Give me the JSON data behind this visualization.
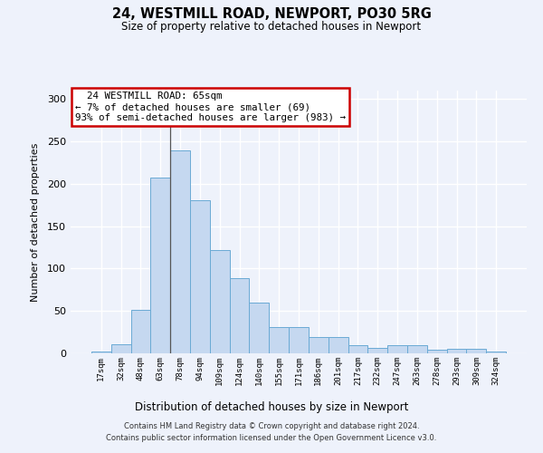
{
  "title": "24, WESTMILL ROAD, NEWPORT, PO30 5RG",
  "subtitle": "Size of property relative to detached houses in Newport",
  "xlabel": "Distribution of detached houses by size in Newport",
  "ylabel": "Number of detached properties",
  "categories": [
    "17sqm",
    "32sqm",
    "48sqm",
    "63sqm",
    "78sqm",
    "94sqm",
    "109sqm",
    "124sqm",
    "140sqm",
    "155sqm",
    "171sqm",
    "186sqm",
    "201sqm",
    "217sqm",
    "232sqm",
    "247sqm",
    "263sqm",
    "278sqm",
    "293sqm",
    "309sqm",
    "324sqm"
  ],
  "values": [
    2,
    11,
    51,
    207,
    239,
    181,
    122,
    89,
    60,
    31,
    31,
    19,
    19,
    10,
    6,
    10,
    10,
    4,
    5,
    5,
    2
  ],
  "bar_color": "#c5d8f0",
  "bar_edge_color": "#6aaad4",
  "annotation_line1": "  24 WESTMILL ROAD: 65sqm",
  "annotation_line2": "← 7% of detached houses are smaller (69)",
  "annotation_line3": "93% of semi-detached houses are larger (983) →",
  "annotation_box_color": "white",
  "annotation_box_edge_color": "#cc0000",
  "vline_bin_index": 3,
  "ylim": [
    0,
    310
  ],
  "yticks": [
    0,
    50,
    100,
    150,
    200,
    250,
    300
  ],
  "background_color": "#eef2fb",
  "grid_color": "white",
  "footer_line1": "Contains HM Land Registry data © Crown copyright and database right 2024.",
  "footer_line2": "Contains public sector information licensed under the Open Government Licence v3.0."
}
